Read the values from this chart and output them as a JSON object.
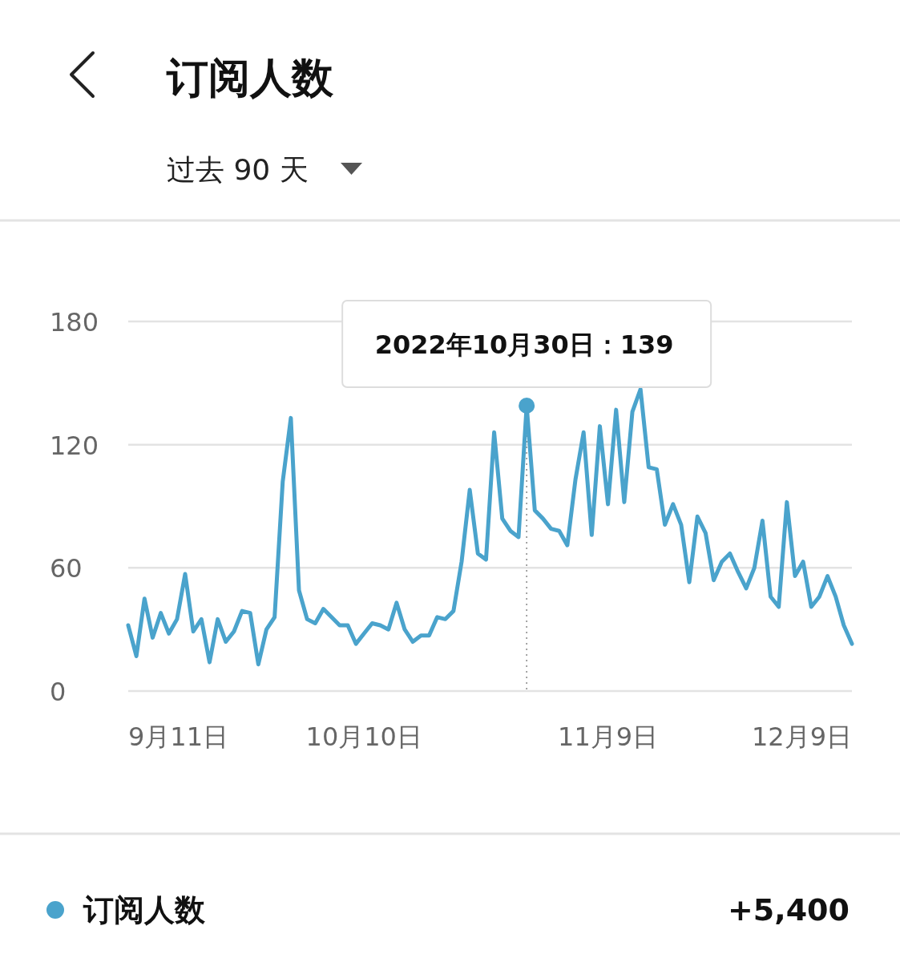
{
  "chart_data": {
    "type": "line",
    "title": "订阅人数",
    "subtitle": "过去 90 天",
    "x": [
      "2022-09-11",
      "2022-09-12",
      "2022-09-13",
      "2022-09-14",
      "2022-09-15",
      "2022-09-16",
      "2022-09-17",
      "2022-09-18",
      "2022-09-19",
      "2022-09-20",
      "2022-09-21",
      "2022-09-22",
      "2022-09-23",
      "2022-09-24",
      "2022-09-25",
      "2022-09-26",
      "2022-09-27",
      "2022-09-28",
      "2022-09-29",
      "2022-09-30",
      "2022-10-01",
      "2022-10-02",
      "2022-10-03",
      "2022-10-04",
      "2022-10-05",
      "2022-10-06",
      "2022-10-07",
      "2022-10-08",
      "2022-10-09",
      "2022-10-10",
      "2022-10-11",
      "2022-10-12",
      "2022-10-13",
      "2022-10-14",
      "2022-10-15",
      "2022-10-16",
      "2022-10-17",
      "2022-10-18",
      "2022-10-19",
      "2022-10-20",
      "2022-10-21",
      "2022-10-22",
      "2022-10-23",
      "2022-10-24",
      "2022-10-25",
      "2022-10-26",
      "2022-10-27",
      "2022-10-28",
      "2022-10-29",
      "2022-10-30",
      "2022-10-31",
      "2022-11-01",
      "2022-11-02",
      "2022-11-03",
      "2022-11-04",
      "2022-11-05",
      "2022-11-06",
      "2022-11-07",
      "2022-11-08",
      "2022-11-09",
      "2022-11-10",
      "2022-11-11",
      "2022-11-12",
      "2022-11-13",
      "2022-11-14",
      "2022-11-15",
      "2022-11-16",
      "2022-11-17",
      "2022-11-18",
      "2022-11-19",
      "2022-11-20",
      "2022-11-21",
      "2022-11-22",
      "2022-11-23",
      "2022-11-24",
      "2022-11-25",
      "2022-11-26",
      "2022-11-27",
      "2022-11-28",
      "2022-11-29",
      "2022-11-30",
      "2022-12-01",
      "2022-12-02",
      "2022-12-03",
      "2022-12-04",
      "2022-12-05",
      "2022-12-06",
      "2022-12-07",
      "2022-12-08",
      "2022-12-09"
    ],
    "series": [
      {
        "name": "订阅人数",
        "color": "#4aa3cc",
        "values": [
          32,
          17,
          45,
          26,
          38,
          28,
          35,
          57,
          29,
          35,
          14,
          35,
          24,
          29,
          39,
          38,
          13,
          30,
          36,
          102,
          133,
          49,
          35,
          33,
          40,
          36,
          32,
          32,
          23,
          28,
          33,
          32,
          30,
          43,
          30,
          24,
          27,
          27,
          36,
          35,
          39,
          63,
          98,
          67,
          64,
          126,
          84,
          78,
          75,
          139,
          88,
          84,
          79,
          78,
          71,
          103,
          126,
          76,
          129,
          91,
          137,
          92,
          136,
          147,
          109,
          108,
          81,
          91,
          81,
          53,
          85,
          77,
          54,
          63,
          67,
          58,
          50,
          60,
          83,
          46,
          41,
          92,
          56,
          63,
          41,
          46,
          56,
          46,
          32,
          23
        ]
      }
    ],
    "xlim": [
      "2022-09-11",
      "2022-12-09"
    ],
    "xticks": [
      {
        "value": "2022-09-11",
        "label": "9月11日"
      },
      {
        "value": "2022-10-10",
        "label": "10月10日"
      },
      {
        "value": "2022-11-09",
        "label": "11月9日"
      },
      {
        "value": "2022-12-09",
        "label": "12月9日"
      }
    ],
    "ylim": [
      0,
      180
    ],
    "yticks": [
      0,
      60,
      120,
      180
    ],
    "grid": "y",
    "legend": "bottom",
    "marker": "none",
    "line_style": "solid",
    "ref_lines": [
      {
        "axis": "x",
        "value": "2022-10-30",
        "line_style": "dotted",
        "color": "#888888"
      }
    ],
    "annotations": [
      {
        "text": "2022年10月30日：139",
        "x": "2022-10-30",
        "y": 139
      },
      "+5,400"
    ]
  }
}
